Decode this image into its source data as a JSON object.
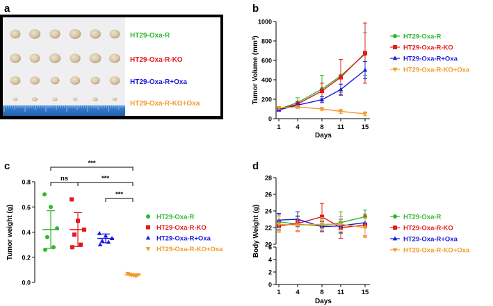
{
  "colors": {
    "green": "#2db82d",
    "red": "#e41a1c",
    "blue": "#1a1adb",
    "orange": "#f39a2b",
    "ruler": "#2f73c9",
    "tray": "#efeff2"
  },
  "panels": {
    "a": {
      "letter": "a",
      "rows": [
        {
          "label": "HT29-Oxa-R",
          "color_key": "green",
          "tumor_size": "large"
        },
        {
          "label": "HT29-Oxa-R-KO",
          "color_key": "red",
          "tumor_size": "large"
        },
        {
          "label": "HT29-Oxa-R+Oxa",
          "color_key": "blue",
          "tumor_size": "medium"
        },
        {
          "label": "HT29-Oxa-R-KO+Oxa",
          "color_key": "orange",
          "tumor_size": "small"
        }
      ]
    },
    "b": {
      "letter": "b"
    },
    "c": {
      "letter": "c"
    },
    "d": {
      "letter": "d"
    }
  },
  "chart_data": [
    {
      "panel": "b",
      "type": "line",
      "xlabel": "Days",
      "ylabel": "Tumor Volume (mm³)",
      "x": [
        1,
        4,
        8,
        11,
        15
      ],
      "xticks": [
        "1",
        "4",
        "8",
        "11",
        "15"
      ],
      "ylim": [
        0,
        1000
      ],
      "yticks": [
        0,
        200,
        400,
        600,
        800,
        1000
      ],
      "legend_position": "top-right",
      "series": [
        {
          "name": "HT29-Oxa-R",
          "color_key": "green",
          "marker": "circle",
          "values": [
            100,
            165,
            305,
            440,
            665
          ],
          "err": [
            15,
            50,
            140,
            170,
            220
          ]
        },
        {
          "name": "HT29-Oxa-R-KO",
          "color_key": "red",
          "marker": "square",
          "values": [
            95,
            150,
            285,
            425,
            675
          ],
          "err": [
            12,
            30,
            80,
            185,
            310
          ]
        },
        {
          "name": "HT29-Oxa-R+Oxa",
          "color_key": "blue",
          "marker": "triangle-up",
          "values": [
            90,
            140,
            195,
            300,
            500
          ],
          "err": [
            10,
            20,
            30,
            55,
            90
          ]
        },
        {
          "name": "HT29-Oxa-R-KO+Oxa",
          "color_key": "orange",
          "marker": "triangle-down",
          "values": [
            110,
            120,
            100,
            75,
            50
          ],
          "err": [
            15,
            15,
            15,
            20,
            20
          ]
        }
      ]
    },
    {
      "panel": "c",
      "type": "scatter",
      "ylabel": "Tumor weight (g)",
      "ylim": [
        0,
        0.8
      ],
      "yticks": [
        "0.0",
        "0.2",
        "0.4",
        "0.6",
        "0.8"
      ],
      "legend_position": "right",
      "groups": [
        {
          "name": "HT29-Oxa-R",
          "color_key": "green",
          "marker": "circle",
          "points": [
            0.7,
            0.6,
            0.43,
            0.36,
            0.28,
            0.26
          ],
          "mean": 0.42,
          "sd": 0.15
        },
        {
          "name": "HT29-Oxa-R-KO",
          "color_key": "red",
          "marker": "square",
          "points": [
            0.66,
            0.49,
            0.42,
            0.38,
            0.3,
            0.28
          ],
          "mean": 0.42,
          "sd": 0.135
        },
        {
          "name": "HT29-Oxa-R+Oxa",
          "color_key": "blue",
          "marker": "triangle-up",
          "points": [
            0.39,
            0.37,
            0.35,
            0.33,
            0.32,
            0.3
          ],
          "mean": 0.35,
          "sd": 0.035
        },
        {
          "name": "HT29-Oxa-R-KO+Oxa",
          "color_key": "orange",
          "marker": "triangle-down",
          "points": [
            0.07,
            0.065,
            0.06,
            0.055,
            0.05,
            0.06
          ],
          "mean": 0.06,
          "sd": 0.008
        }
      ],
      "annotations": [
        {
          "label": "***",
          "from": 0,
          "to": 3,
          "level": 1
        },
        {
          "label": "ns",
          "from": 0,
          "to": 1,
          "level": 0
        },
        {
          "label": "***",
          "from": 1,
          "to": 3,
          "level": 0
        },
        {
          "label": "***",
          "from": 2,
          "to": 3,
          "level": -1
        }
      ]
    },
    {
      "panel": "d",
      "type": "line",
      "xlabel": "Days",
      "ylabel": "Body Weight (g)",
      "x": [
        1,
        4,
        8,
        11,
        15
      ],
      "xticks": [
        "1",
        "4",
        "8",
        "11",
        "15"
      ],
      "axis_break": {
        "lower": [
          0,
          6
        ],
        "upper": [
          20,
          28
        ]
      },
      "yticks_upper": [
        20,
        22,
        24,
        26,
        28
      ],
      "yticks_lower": [
        0,
        2,
        4,
        6
      ],
      "legend_position": "right",
      "series": [
        {
          "name": "HT29-Oxa-R",
          "color_key": "green",
          "marker": "circle",
          "values": [
            22.7,
            22.4,
            22.2,
            22.6,
            23.3
          ],
          "err": [
            0.9,
            0.9,
            0.7,
            1.3,
            0.8
          ]
        },
        {
          "name": "HT29-Oxa-R-KO",
          "color_key": "red",
          "marker": "square",
          "values": [
            22.2,
            22.5,
            23.3,
            22.0,
            22.3
          ],
          "err": [
            0.6,
            0.9,
            1.6,
            1.3,
            1.3
          ]
        },
        {
          "name": "HT29-Oxa-R+Oxa",
          "color_key": "blue",
          "marker": "triangle-up",
          "values": [
            22.9,
            23.0,
            22.1,
            22.2,
            22.6
          ],
          "err": [
            0.8,
            0.9,
            0.6,
            0.8,
            0.6
          ]
        },
        {
          "name": "HT29-Oxa-R-KO+Oxa",
          "color_key": "orange",
          "marker": "triangle-down",
          "values": [
            22.4,
            22.3,
            22.4,
            22.4,
            22.0
          ],
          "err": [
            1.0,
            0.8,
            0.8,
            0.9,
            1.2
          ]
        }
      ]
    }
  ]
}
